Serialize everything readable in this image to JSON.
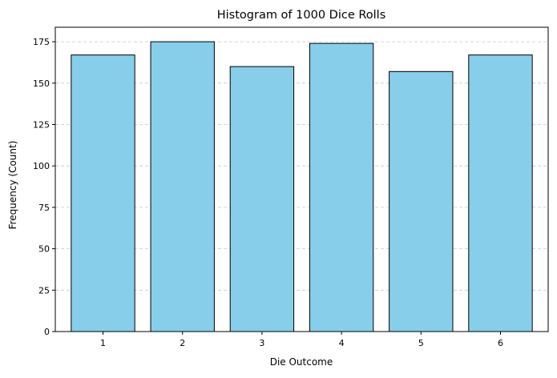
{
  "chart_data": {
    "type": "bar",
    "title": "Histogram of 1000 Dice Rolls",
    "xlabel": "Die Outcome",
    "ylabel": "Frequency (Count)",
    "categories": [
      "1",
      "2",
      "3",
      "4",
      "5",
      "6"
    ],
    "values": [
      167,
      175,
      160,
      174,
      157,
      167
    ],
    "ylim": [
      0,
      183.75
    ],
    "yticks": [
      0,
      25,
      50,
      75,
      100,
      125,
      150,
      175
    ],
    "grid": {
      "axis": "y",
      "style": "dashed"
    },
    "legend": "none",
    "colors": {
      "bar_fill": "#87ceeb",
      "bar_edge": "#000000",
      "grid": "#c8c8c8"
    }
  }
}
